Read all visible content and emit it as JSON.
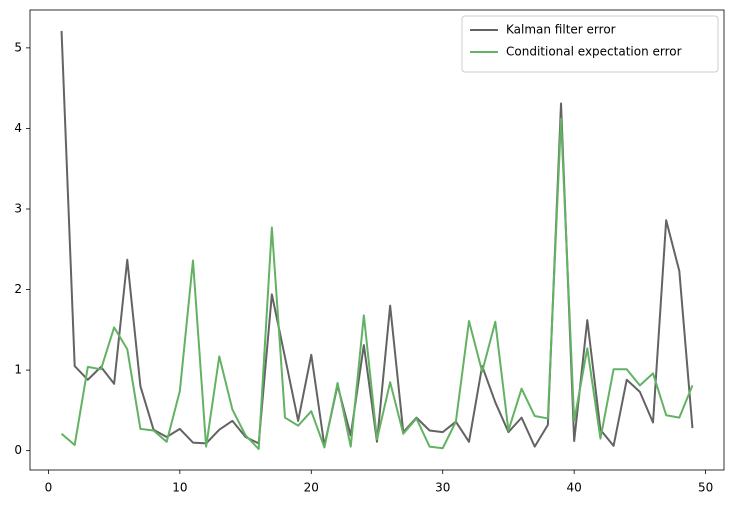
{
  "chart_data": {
    "type": "line",
    "x": [
      1,
      2,
      3,
      4,
      5,
      6,
      7,
      8,
      9,
      10,
      11,
      12,
      13,
      14,
      15,
      16,
      17,
      18,
      19,
      20,
      21,
      22,
      23,
      24,
      25,
      26,
      27,
      28,
      29,
      30,
      31,
      32,
      33,
      34,
      35,
      36,
      37,
      38,
      39,
      40,
      41,
      42,
      43,
      44,
      45,
      46,
      47,
      48,
      49
    ],
    "series": [
      {
        "name": "Kalman filter error",
        "color": "#636363",
        "values": [
          5.21,
          1.05,
          0.88,
          1.04,
          0.83,
          2.37,
          0.8,
          0.26,
          0.17,
          0.27,
          0.1,
          0.09,
          0.26,
          0.37,
          0.17,
          0.09,
          1.94,
          1.16,
          0.37,
          1.19,
          0.06,
          0.81,
          0.19,
          1.31,
          0.11,
          1.8,
          0.23,
          0.41,
          0.25,
          0.23,
          0.36,
          0.11,
          1.05,
          0.6,
          0.23,
          0.41,
          0.05,
          0.32,
          4.31,
          0.12,
          1.62,
          0.26,
          0.06,
          0.88,
          0.73,
          0.35,
          2.86,
          2.23,
          0.28
        ]
      },
      {
        "name": "Conditional expectation error",
        "color": "#63b263",
        "values": [
          0.21,
          0.07,
          1.04,
          1.01,
          1.53,
          1.26,
          0.27,
          0.25,
          0.11,
          0.74,
          2.36,
          0.05,
          1.17,
          0.51,
          0.19,
          0.02,
          2.77,
          0.41,
          0.31,
          0.49,
          0.04,
          0.84,
          0.05,
          1.68,
          0.14,
          0.85,
          0.21,
          0.4,
          0.05,
          0.03,
          0.36,
          1.61,
          0.98,
          1.6,
          0.25,
          0.77,
          0.43,
          0.4,
          4.12,
          0.37,
          1.27,
          0.15,
          1.01,
          1.01,
          0.81,
          0.96,
          0.44,
          0.41,
          0.81
        ]
      }
    ],
    "xlim": [
      -1.4,
      51.4
    ],
    "xticks": [
      0,
      10,
      20,
      30,
      40,
      50
    ],
    "ylim": [
      -0.24,
      5.47
    ],
    "yticks": [
      0,
      1,
      2,
      3,
      4,
      5
    ],
    "legend": "upper right"
  }
}
